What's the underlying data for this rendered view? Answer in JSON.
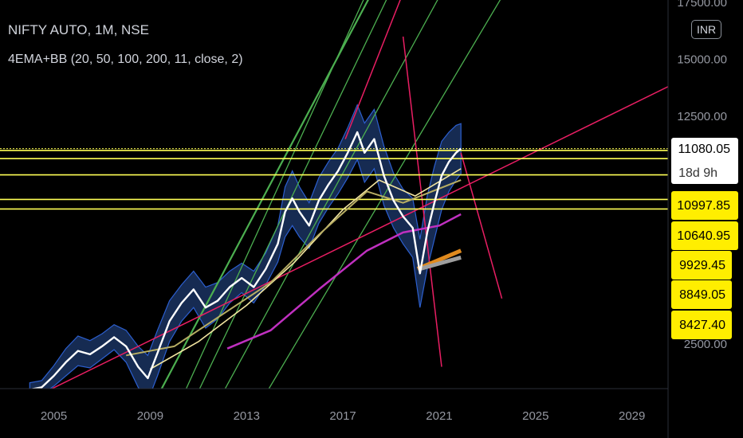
{
  "header": {
    "title": "NIFTY AUTO, 1M, NSE",
    "indicator": "4EMA+BB (20, 50, 100, 200, 11, close, 2)",
    "currency": "INR"
  },
  "price_tags": {
    "last_price": "11080.05",
    "countdown": "18d 9h",
    "levels": [
      "10997.85",
      "10640.95",
      "9929.45",
      "8849.05",
      "8427.40"
    ]
  },
  "colors": {
    "background": "#000000",
    "price": "#ffffff",
    "ema_fast": "#f2e5a0",
    "ema_mid": "#b7ad63",
    "ema_slow": "#c030c0",
    "ema_200": "#e08a1e",
    "bollinger_fill": "#1d3a6e",
    "bollinger_edge": "#2c5fcf",
    "level_line": "#ffff55",
    "trend_green": "#4caf50",
    "trend_pink": "#e91e63",
    "label_bg": "#ffee00"
  },
  "chart_data": {
    "type": "line",
    "symbol": "NIFTY AUTO",
    "interval": "1M",
    "exchange": "NSE",
    "x_ticks": [
      "2005",
      "2009",
      "2013",
      "2017",
      "2021",
      "2025",
      "2029"
    ],
    "y_ticks": [
      "2500.00",
      "12500.00",
      "15000.00",
      "17500.00"
    ],
    "ylim": [
      0,
      17500
    ],
    "xlim": [
      2002.5,
      2030.5
    ],
    "price_series": {
      "name": "close",
      "x": [
        2004.0,
        2004.5,
        2005.0,
        2005.5,
        2006.0,
        2006.5,
        2007.0,
        2007.5,
        2008.0,
        2008.5,
        2008.9,
        2009.3,
        2009.8,
        2010.3,
        2010.8,
        2011.3,
        2011.8,
        2012.3,
        2012.8,
        2013.3,
        2013.8,
        2014.3,
        2014.6,
        2014.9,
        2015.2,
        2015.6,
        2016.0,
        2016.4,
        2016.8,
        2017.2,
        2017.6,
        2017.9,
        2018.3,
        2018.7,
        2019.1,
        2019.5,
        2019.9,
        2020.2,
        2020.5,
        2020.8,
        2021.1,
        2021.4,
        2021.7,
        2021.9
      ],
      "y": [
        500,
        600,
        1100,
        1700,
        2200,
        2050,
        2400,
        2800,
        2400,
        1500,
        1000,
        2100,
        3500,
        4300,
        4900,
        4100,
        4400,
        5000,
        5400,
        5000,
        5800,
        6900,
        8300,
        8900,
        8300,
        7700,
        8800,
        9500,
        10100,
        10900,
        11800,
        10900,
        11500,
        9900,
        8800,
        8100,
        7600,
        5600,
        7400,
        8700,
        9900,
        10500,
        10900,
        11080
      ]
    },
    "series": [
      {
        "values_note": "",
        "x": [
          2009.0,
          2011.0,
          2013.0,
          2015.0,
          2017.0,
          2018.5,
          2020.0,
          2021.9
        ],
        "y": [
          1400,
          2600,
          4200,
          6100,
          8400,
          9700,
          9000,
          10200
        ]
      },
      {
        "x": [
          2008.0,
          2010.0,
          2012.0,
          2014.0,
          2016.0,
          2018.0,
          2019.5,
          2021.9
        ],
        "y": [
          2000,
          2400,
          3800,
          5200,
          7300,
          9200,
          8700,
          9700
        ]
      },
      {
        "x": [
          2012.2,
          2014.0,
          2016.0,
          2018.0,
          2019.5,
          2021.0,
          2021.9
        ],
        "y": [
          2300,
          3100,
          4900,
          6600,
          7400,
          7700,
          8200
        ]
      },
      {
        "x": [
          2020.1,
          2021.0,
          2021.9
        ],
        "y": [
          5800,
          6200,
          6600
        ]
      }
    ],
    "horizontal_levels": [
      11080.05,
      10997.85,
      10640.95,
      9929.45,
      8849.05,
      8427.4
    ],
    "legend_position": "top-left",
    "grid": false
  }
}
